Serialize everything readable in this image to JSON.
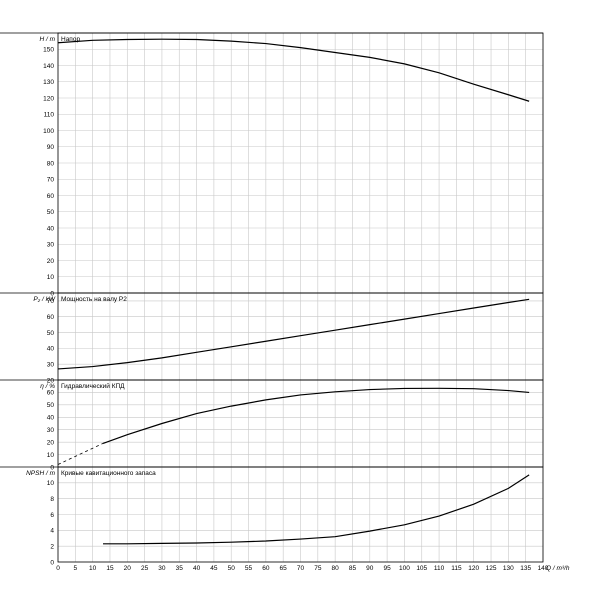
{
  "chart_data": {
    "type": "line",
    "x_axis": {
      "label": "Q / m³/h",
      "range": [
        0,
        140
      ],
      "ticks": [
        0,
        5,
        10,
        15,
        20,
        25,
        30,
        35,
        40,
        45,
        50,
        55,
        60,
        65,
        70,
        75,
        80,
        85,
        90,
        95,
        100,
        105,
        110,
        115,
        120,
        125,
        130,
        135,
        140
      ]
    },
    "grid": true,
    "panels": [
      {
        "id": "head",
        "title": "Напор",
        "ylabel": "H / m",
        "ylim": [
          0,
          160
        ],
        "yticks": [
          0,
          10,
          20,
          30,
          40,
          50,
          60,
          70,
          80,
          90,
          100,
          110,
          120,
          130,
          140,
          150
        ],
        "series": [
          {
            "x": [
              0,
              10,
              20,
              30,
              40,
              50,
              60,
              70,
              80,
              90,
              100,
              110,
              120,
              130,
              136
            ],
            "y": [
              154,
              155.5,
              156,
              156.2,
              156,
              155,
              153.5,
              151,
              148,
              145,
              141,
              135.5,
              128.5,
              122,
              118
            ]
          }
        ]
      },
      {
        "id": "power",
        "title": "Мощность на валу P2",
        "ylabel": "P₂ / kW",
        "ylim": [
          20,
          75
        ],
        "yticks": [
          20,
          30,
          40,
          50,
          60,
          70
        ],
        "series": [
          {
            "x": [
              0,
              10,
              20,
              30,
              40,
              50,
              60,
              70,
              80,
              90,
              100,
              110,
              120,
              130,
              136
            ],
            "y": [
              27,
              28.5,
              31,
              34,
              37.5,
              41,
              44.5,
              48,
              51.5,
              55,
              58.5,
              62,
              65.5,
              69,
              71
            ]
          }
        ]
      },
      {
        "id": "efficiency",
        "title": "Гидравлический КПД",
        "ylabel": "η / %",
        "ylim": [
          0,
          70
        ],
        "yticks": [
          0,
          10,
          20,
          30,
          40,
          50,
          60
        ],
        "series": [
          {
            "style": "dashed",
            "x": [
              0,
              13
            ],
            "y": [
              2,
              19
            ]
          },
          {
            "x": [
              13,
              20,
              30,
              40,
              50,
              60,
              70,
              80,
              90,
              100,
              110,
              120,
              130,
              136
            ],
            "y": [
              19,
              26,
              35,
              43,
              49,
              54,
              58,
              60.5,
              62.3,
              63.2,
              63.3,
              63,
              61.5,
              60
            ]
          }
        ]
      },
      {
        "id": "npsh",
        "title": "Кривые кавитационного запаса",
        "ylabel": "NPSH / m",
        "ylim": [
          0,
          12
        ],
        "yticks": [
          0,
          2,
          4,
          6,
          8,
          10
        ],
        "series": [
          {
            "x": [
              13,
              20,
              30,
              40,
              50,
              60,
              70,
              80,
              90,
              100,
              110,
              120,
              130,
              136
            ],
            "y": [
              2.3,
              2.3,
              2.35,
              2.4,
              2.5,
              2.65,
              2.9,
              3.2,
              3.9,
              4.7,
              5.8,
              7.3,
              9.3,
              11
            ]
          }
        ]
      }
    ]
  }
}
